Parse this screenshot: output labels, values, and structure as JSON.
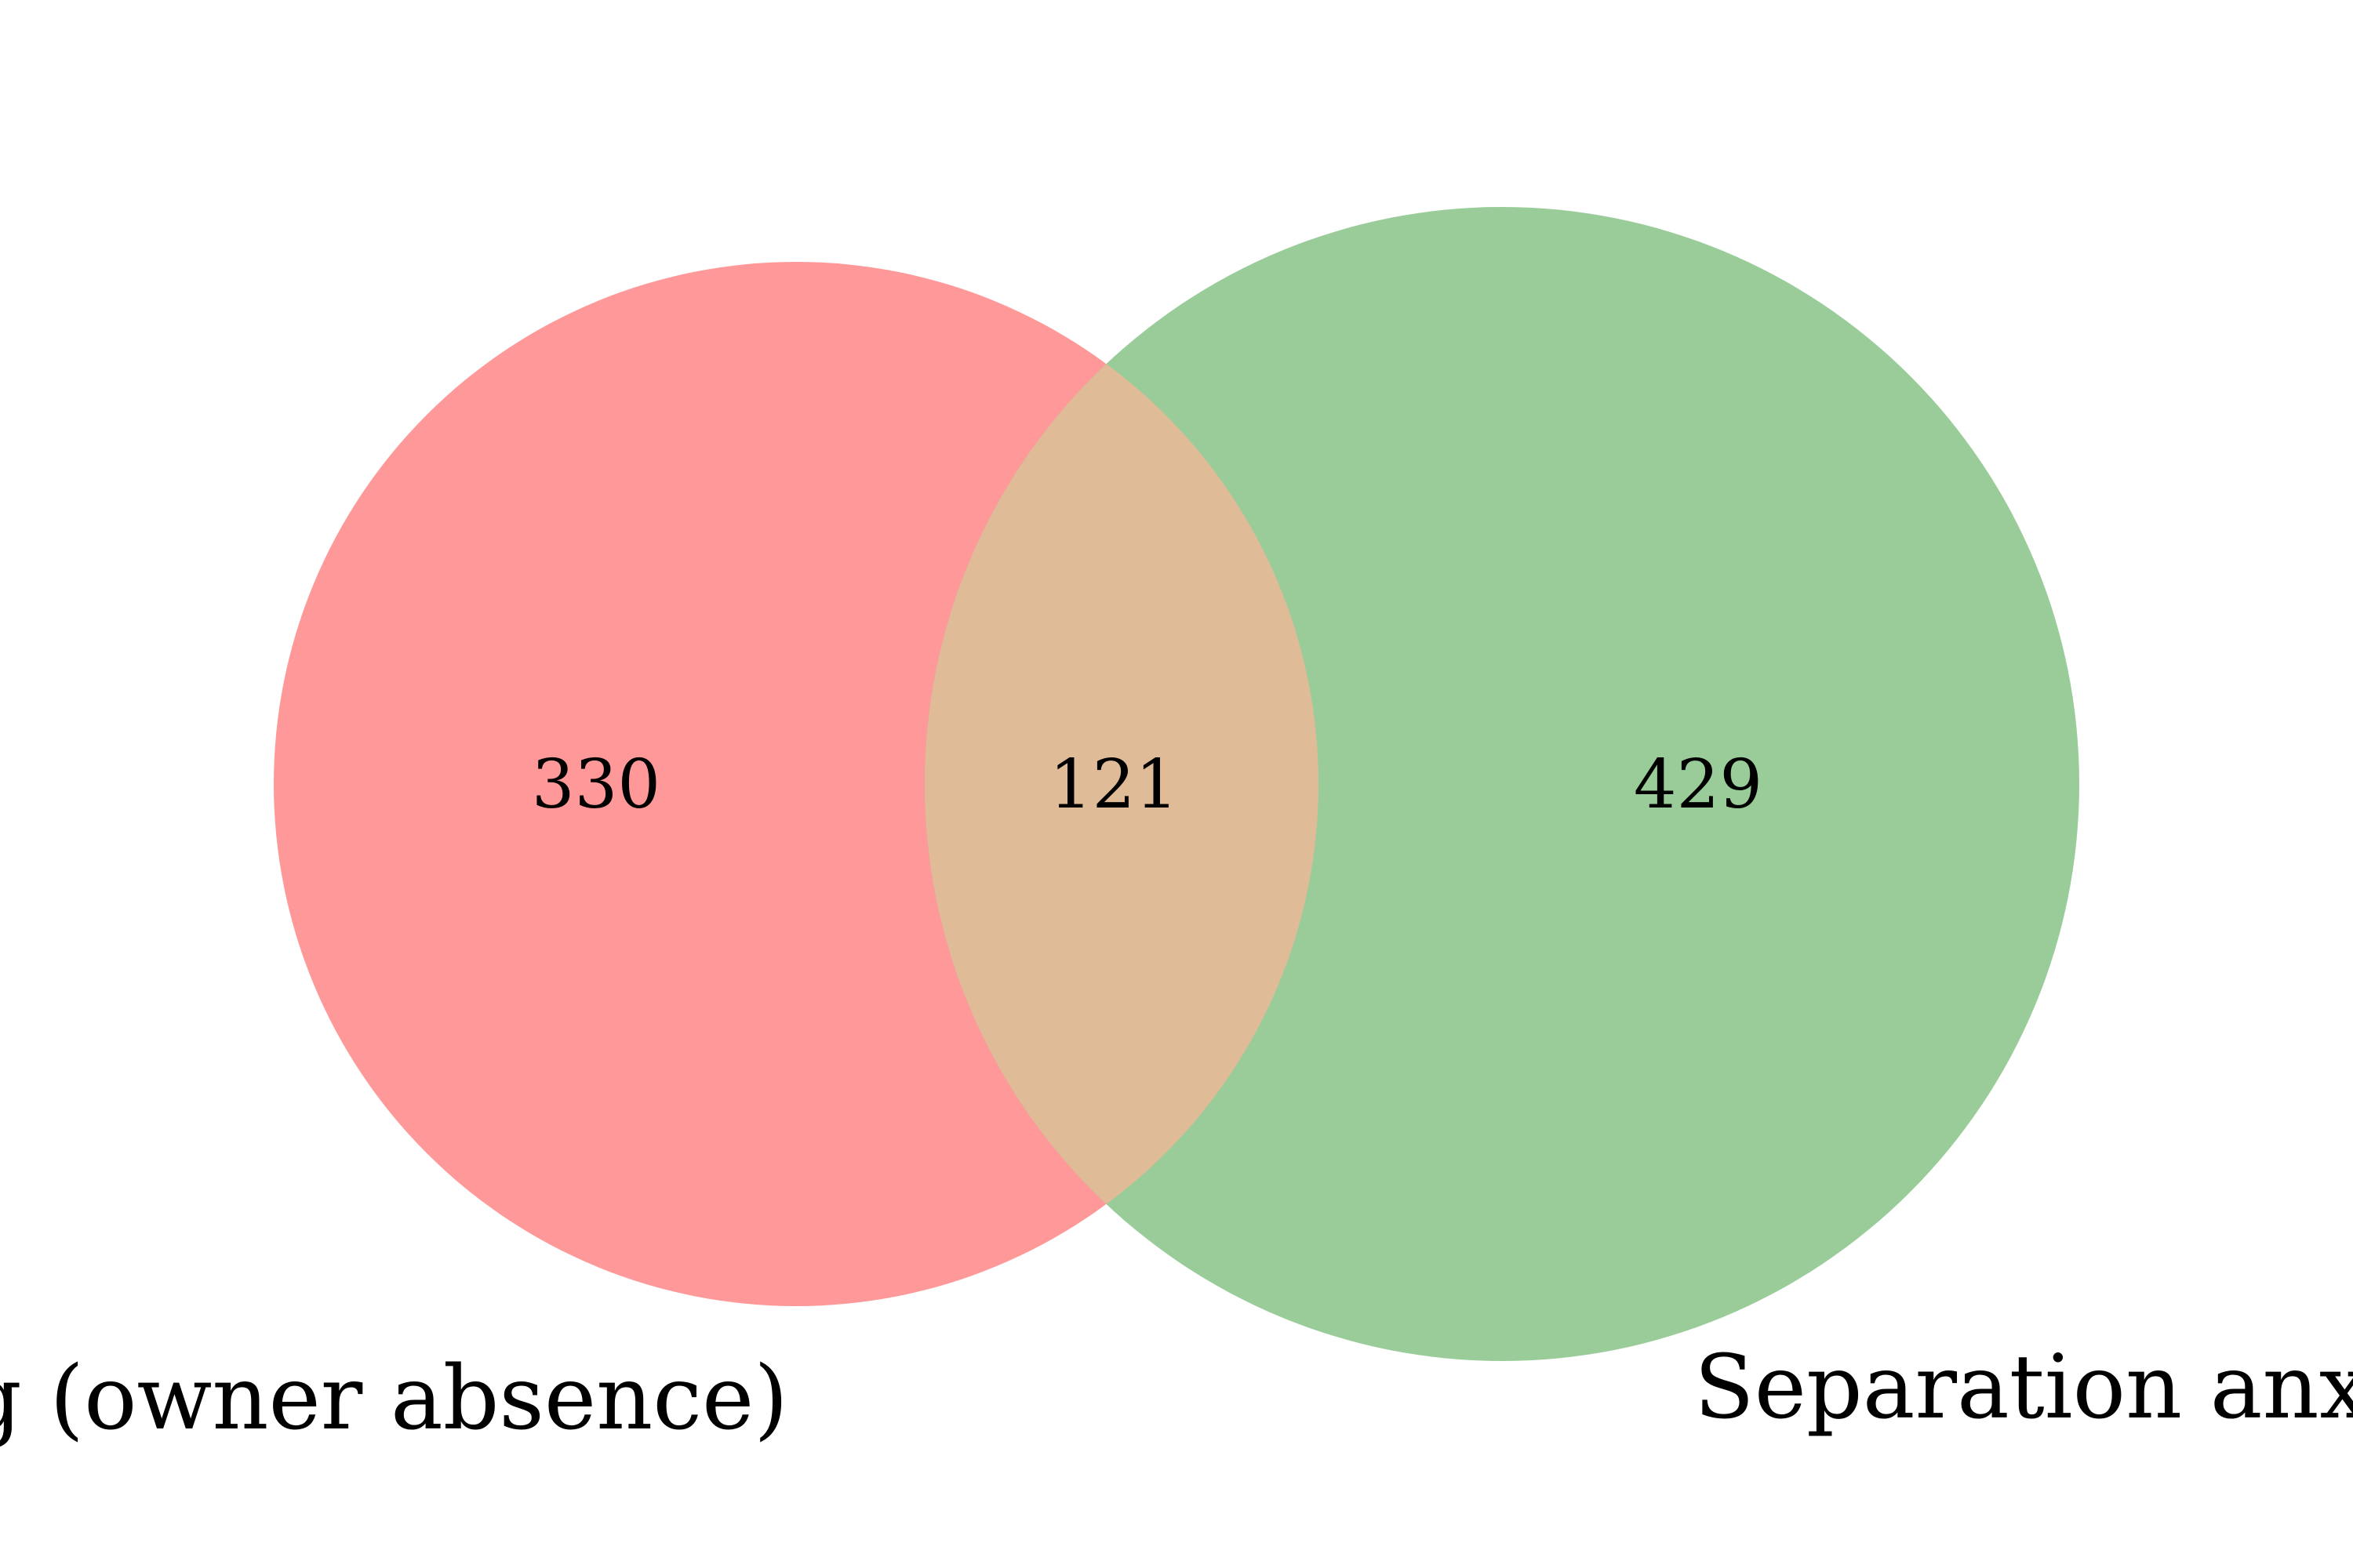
{
  "venn": {
    "sets": [
      {
        "label": "Soiling (owner absence)",
        "color": "#ff9999"
      },
      {
        "label": "Separation anxiety",
        "color": "#99cc99"
      }
    ],
    "overlap_color": "#dfbb97",
    "counts": {
      "left_only": "330",
      "both": "121",
      "right_only": "429"
    }
  }
}
